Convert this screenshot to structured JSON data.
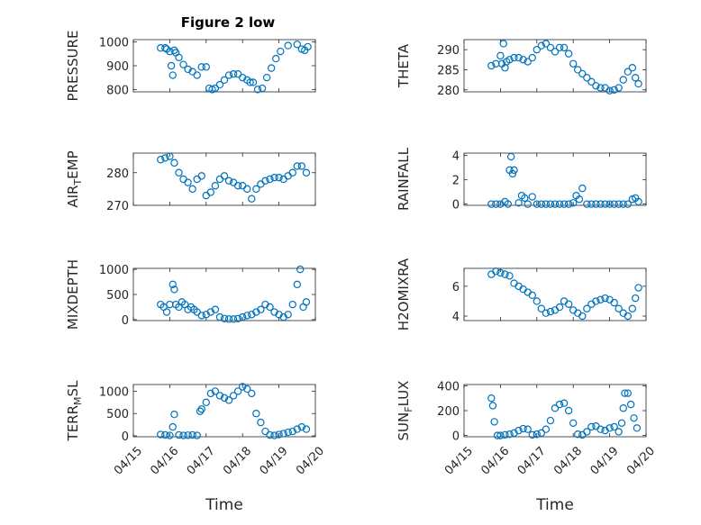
{
  "figure": {
    "title": "Figure 2 low",
    "xlabel": "Time",
    "marker_color": "#0072bd"
  },
  "chart_data": [
    {
      "type": "scatter",
      "ylabel": "PRESSURE",
      "ylim": [
        790,
        1010
      ],
      "yticks": [
        800,
        900,
        1000
      ],
      "xlim": [
        "04/15",
        "04/20"
      ],
      "grid": true,
      "x": [
        "04/15 18:00",
        "04/15 21:00",
        "04/15 22:00",
        "04/16 00:00",
        "04/16 01:00",
        "04/16 02:00",
        "04/16 03:00",
        "04/16 04:00",
        "04/16 06:00",
        "04/16 09:00",
        "04/16 12:00",
        "04/16 15:00",
        "04/16 18:00",
        "04/16 21:00",
        "04/17 00:00",
        "04/17 02:00",
        "04/17 04:00",
        "04/17 06:00",
        "04/17 09:00",
        "04/17 12:00",
        "04/17 15:00",
        "04/17 18:00",
        "04/17 21:00",
        "04/18 00:00",
        "04/18 03:00",
        "04/18 05:00",
        "04/18 07:00",
        "04/18 10:00",
        "04/18 13:00",
        "04/18 16:00",
        "04/18 19:00",
        "04/18 22:00",
        "04/19 01:00",
        "04/19 06:00",
        "04/19 12:00",
        "04/19 15:00",
        "04/19 17:00",
        "04/19 19:00"
      ],
      "y": [
        975,
        975,
        970,
        960,
        900,
        860,
        965,
        955,
        935,
        905,
        885,
        875,
        860,
        895,
        895,
        805,
        800,
        805,
        820,
        840,
        860,
        865,
        865,
        850,
        840,
        830,
        830,
        800,
        805,
        850,
        890,
        930,
        960,
        985,
        990,
        970,
        965,
        980
      ]
    },
    {
      "type": "scatter",
      "ylabel": "THETA",
      "ylim": [
        279.5,
        292.5
      ],
      "yticks": [
        280,
        285,
        290
      ],
      "xlim": [
        "04/15",
        "04/20"
      ],
      "grid": true,
      "x": [
        "04/15 18:00",
        "04/15 21:00",
        "04/16 00:00",
        "04/16 01:00",
        "04/16 02:00",
        "04/16 03:00",
        "04/16 04:00",
        "04/16 06:00",
        "04/16 09:00",
        "04/16 12:00",
        "04/16 15:00",
        "04/16 18:00",
        "04/16 21:00",
        "04/17 00:00",
        "04/17 03:00",
        "04/17 06:00",
        "04/17 09:00",
        "04/17 12:00",
        "04/17 15:00",
        "04/17 18:00",
        "04/17 21:00",
        "04/18 00:00",
        "04/18 03:00",
        "04/18 06:00",
        "04/18 09:00",
        "04/18 12:00",
        "04/18 15:00",
        "04/18 18:00",
        "04/18 21:00",
        "04/19 00:00",
        "04/19 03:00",
        "04/19 06:00",
        "04/19 09:00",
        "04/19 12:00",
        "04/19 15:00",
        "04/19 17:00",
        "04/19 19:00"
      ],
      "y": [
        286,
        286.5,
        288.5,
        286.5,
        291.5,
        285.5,
        287,
        287.5,
        288,
        288,
        287.5,
        287,
        288,
        290,
        291,
        291.5,
        290.5,
        289.5,
        290.5,
        290.5,
        289,
        286.5,
        285,
        284,
        283,
        282,
        281,
        280.5,
        280.5,
        279.8,
        280,
        280.5,
        282.5,
        284.5,
        285.5,
        283,
        281.5
      ]
    },
    {
      "type": "scatter",
      "ylabel": "AIR_TEMP",
      "ylim": [
        270,
        286
      ],
      "yticks": [
        270,
        280
      ],
      "xlim": [
        "04/15",
        "04/20"
      ],
      "grid": true,
      "x": [
        "04/15 18:00",
        "04/15 21:00",
        "04/16 00:00",
        "04/16 03:00",
        "04/16 06:00",
        "04/16 09:00",
        "04/16 12:00",
        "04/16 15:00",
        "04/16 18:00",
        "04/16 21:00",
        "04/17 00:00",
        "04/17 03:00",
        "04/17 06:00",
        "04/17 09:00",
        "04/17 12:00",
        "04/17 15:00",
        "04/17 18:00",
        "04/17 21:00",
        "04/18 00:00",
        "04/18 03:00",
        "04/18 06:00",
        "04/18 09:00",
        "04/18 12:00",
        "04/18 15:00",
        "04/18 18:00",
        "04/18 21:00",
        "04/19 00:00",
        "04/19 03:00",
        "04/19 06:00",
        "04/19 09:00",
        "04/19 12:00",
        "04/19 15:00",
        "04/19 18:00"
      ],
      "y": [
        284,
        284.5,
        285,
        283,
        280,
        278,
        277,
        275,
        278,
        279,
        273,
        274,
        276,
        278,
        279,
        277.5,
        277,
        276,
        276,
        275,
        272,
        275,
        276.5,
        277.5,
        278,
        278.5,
        278.5,
        278,
        279,
        280,
        282,
        282,
        280
      ]
    },
    {
      "type": "scatter",
      "ylabel": "RAINFALL",
      "ylim": [
        -0.1,
        4.2
      ],
      "yticks": [
        0,
        2,
        4
      ],
      "xlim": [
        "04/15",
        "04/20"
      ],
      "grid": true,
      "x": [
        "04/15 18:00",
        "04/15 21:00",
        "04/16 00:00",
        "04/16 03:00",
        "04/16 05:00",
        "04/16 06:00",
        "04/16 07:00",
        "04/16 08:00",
        "04/16 09:00",
        "04/16 12:00",
        "04/16 14:00",
        "04/16 16:00",
        "04/16 18:00",
        "04/16 21:00",
        "04/17 00:00",
        "04/17 03:00",
        "04/17 06:00",
        "04/17 09:00",
        "04/17 12:00",
        "04/17 15:00",
        "04/17 18:00",
        "04/17 21:00",
        "04/18 00:00",
        "04/18 02:00",
        "04/18 04:00",
        "04/18 06:00",
        "04/18 09:00",
        "04/18 12:00",
        "04/18 15:00",
        "04/18 18:00",
        "04/18 21:00",
        "04/19 00:00",
        "04/19 03:00",
        "04/19 06:00",
        "04/19 09:00",
        "04/19 12:00",
        "04/19 15:00",
        "04/19 17:00",
        "04/19 19:00"
      ],
      "y": [
        0,
        0,
        0,
        0.2,
        0,
        2.8,
        3.9,
        2.5,
        2.8,
        0.1,
        0.7,
        0.5,
        0,
        0.6,
        0,
        0,
        0,
        0,
        0,
        0,
        0,
        0,
        0.1,
        0.7,
        0.4,
        1.3,
        0,
        0,
        0,
        0,
        0,
        0,
        0,
        0,
        0,
        0,
        0.4,
        0.5,
        0.2
      ]
    },
    {
      "type": "scatter",
      "ylabel": "MIXDEPTH",
      "ylim": [
        -20,
        1020
      ],
      "yticks": [
        0,
        500,
        1000
      ],
      "xlim": [
        "04/15",
        "04/20"
      ],
      "grid": true,
      "x": [
        "04/15 18:00",
        "04/15 20:00",
        "04/15 22:00",
        "04/16 00:00",
        "04/16 02:00",
        "04/16 03:00",
        "04/16 04:00",
        "04/16 06:00",
        "04/16 08:00",
        "04/16 10:00",
        "04/16 12:00",
        "04/16 14:00",
        "04/16 16:00",
        "04/16 18:00",
        "04/16 21:00",
        "04/17 00:00",
        "04/17 03:00",
        "04/17 06:00",
        "04/17 09:00",
        "04/17 12:00",
        "04/17 15:00",
        "04/17 18:00",
        "04/17 21:00",
        "04/18 00:00",
        "04/18 03:00",
        "04/18 06:00",
        "04/18 09:00",
        "04/18 12:00",
        "04/18 15:00",
        "04/18 18:00",
        "04/18 21:00",
        "04/19 00:00",
        "04/19 03:00",
        "04/19 06:00",
        "04/19 09:00",
        "04/19 12:00",
        "04/19 14:00",
        "04/19 16:00",
        "04/19 18:00"
      ],
      "y": [
        300,
        250,
        150,
        300,
        700,
        600,
        300,
        250,
        350,
        300,
        200,
        250,
        200,
        150,
        80,
        100,
        150,
        200,
        50,
        20,
        10,
        10,
        20,
        50,
        80,
        100,
        150,
        200,
        300,
        250,
        150,
        100,
        50,
        100,
        300,
        700,
        1000,
        250,
        350
      ]
    },
    {
      "type": "scatter",
      "ylabel": "H2OMIXRA",
      "ylim": [
        3.7,
        7.2
      ],
      "yticks": [
        4,
        6
      ],
      "xlim": [
        "04/15",
        "04/20"
      ],
      "grid": true,
      "x": [
        "04/15 18:00",
        "04/15 21:00",
        "04/16 00:00",
        "04/16 03:00",
        "04/16 06:00",
        "04/16 09:00",
        "04/16 12:00",
        "04/16 15:00",
        "04/16 18:00",
        "04/16 21:00",
        "04/17 00:00",
        "04/17 03:00",
        "04/17 06:00",
        "04/17 09:00",
        "04/17 12:00",
        "04/17 15:00",
        "04/17 18:00",
        "04/17 21:00",
        "04/18 00:00",
        "04/18 03:00",
        "04/18 06:00",
        "04/18 09:00",
        "04/18 12:00",
        "04/18 15:00",
        "04/18 18:00",
        "04/18 21:00",
        "04/19 00:00",
        "04/19 03:00",
        "04/19 06:00",
        "04/19 09:00",
        "04/19 12:00",
        "04/19 15:00",
        "04/19 17:00",
        "04/19 19:00"
      ],
      "y": [
        6.8,
        7,
        6.9,
        6.8,
        6.7,
        6.2,
        6,
        5.8,
        5.6,
        5.4,
        5,
        4.5,
        4.2,
        4.3,
        4.4,
        4.6,
        5,
        4.8,
        4.4,
        4.2,
        4,
        4.5,
        4.8,
        5,
        5.1,
        5.2,
        5.1,
        4.9,
        4.5,
        4.2,
        4,
        4.5,
        5.2,
        5.9
      ]
    },
    {
      "type": "scatter",
      "ylabel": "TERR_MSL",
      "ylim": [
        -20,
        1150
      ],
      "yticks": [
        0,
        500,
        1000
      ],
      "xlim": [
        "04/15",
        "04/20"
      ],
      "grid": true,
      "x": [
        "04/15 18:00",
        "04/15 21:00",
        "04/16 00:00",
        "04/16 02:00",
        "04/16 03:00",
        "04/16 06:00",
        "04/16 09:00",
        "04/16 12:00",
        "04/16 15:00",
        "04/16 18:00",
        "04/16 20:00",
        "04/16 21:00",
        "04/17 00:00",
        "04/17 03:00",
        "04/17 06:00",
        "04/17 09:00",
        "04/17 12:00",
        "04/17 15:00",
        "04/17 18:00",
        "04/17 21:00",
        "04/18 00:00",
        "04/18 03:00",
        "04/18 06:00",
        "04/18 09:00",
        "04/18 12:00",
        "04/18 15:00",
        "04/18 18:00",
        "04/18 21:00",
        "04/19 00:00",
        "04/19 03:00",
        "04/19 06:00",
        "04/19 09:00",
        "04/19 12:00",
        "04/19 15:00",
        "04/19 18:00"
      ],
      "y": [
        30,
        20,
        10,
        200,
        480,
        20,
        10,
        15,
        20,
        10,
        550,
        600,
        750,
        950,
        1000,
        900,
        850,
        800,
        900,
        1000,
        1100,
        1050,
        950,
        500,
        300,
        100,
        20,
        10,
        30,
        50,
        80,
        100,
        150,
        200,
        150
      ]
    },
    {
      "type": "scatter",
      "ylabel": "SUN_FLUX",
      "ylim": [
        -10,
        410
      ],
      "yticks": [
        0,
        200,
        400
      ],
      "xlim": [
        "04/15",
        "04/20"
      ],
      "grid": true,
      "x": [
        "04/15 18:00",
        "04/15 19:00",
        "04/15 20:00",
        "04/15 22:00",
        "04/16 00:00",
        "04/16 03:00",
        "04/16 06:00",
        "04/16 09:00",
        "04/16 12:00",
        "04/16 15:00",
        "04/16 18:00",
        "04/16 21:00",
        "04/17 00:00",
        "04/17 03:00",
        "04/17 06:00",
        "04/17 09:00",
        "04/17 12:00",
        "04/17 15:00",
        "04/17 18:00",
        "04/17 21:00",
        "04/18 00:00",
        "04/18 03:00",
        "04/18 06:00",
        "04/18 09:00",
        "04/18 12:00",
        "04/18 15:00",
        "04/18 18:00",
        "04/18 21:00",
        "04/19 00:00",
        "04/19 03:00",
        "04/19 06:00",
        "04/19 08:00",
        "04/19 09:00",
        "04/19 10:00",
        "04/19 12:00",
        "04/19 14:00",
        "04/19 16:00",
        "04/19 18:00"
      ],
      "y": [
        300,
        240,
        110,
        0,
        0,
        5,
        10,
        20,
        40,
        55,
        50,
        5,
        10,
        20,
        50,
        120,
        220,
        250,
        260,
        200,
        100,
        10,
        5,
        30,
        70,
        75,
        50,
        40,
        60,
        70,
        30,
        100,
        220,
        340,
        340,
        250,
        140,
        60
      ]
    }
  ]
}
